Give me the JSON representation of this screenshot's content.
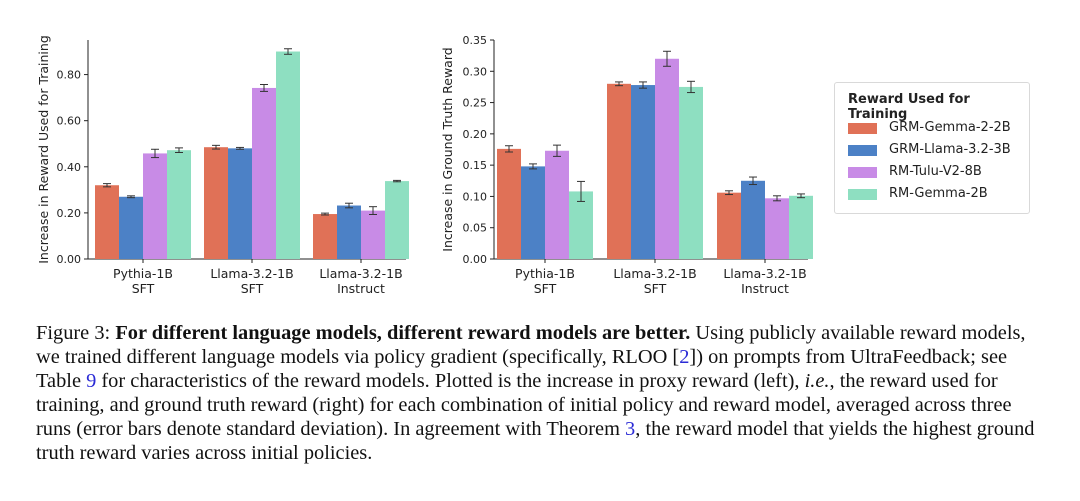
{
  "chart_data": [
    {
      "type": "bar",
      "ylabel": "Increase in Reward Used for Training",
      "ylim": [
        0,
        0.95
      ],
      "yticks": [
        "0.00",
        "0.20",
        "0.40",
        "0.60",
        "0.80"
      ],
      "yticks_values": [
        0,
        0.2,
        0.4,
        0.6,
        0.8
      ],
      "categories": [
        {
          "line1": "Pythia-1B",
          "line2": "SFT"
        },
        {
          "line1": "Llama-3.2-1B",
          "line2": "SFT"
        },
        {
          "line1": "Llama-3.2-1B",
          "line2": "Instruct"
        }
      ],
      "series": [
        {
          "name": "GRM-Gemma-2-2B",
          "values": [
            0.32,
            0.485,
            0.195
          ],
          "errors": [
            0.007,
            0.008,
            0.004
          ]
        },
        {
          "name": "GRM-Llama-3.2-3B",
          "values": [
            0.27,
            0.48,
            0.232
          ],
          "errors": [
            0.004,
            0.004,
            0.01
          ]
        },
        {
          "name": "RM-Tulu-V2-8B",
          "values": [
            0.458,
            0.742,
            0.21
          ],
          "errors": [
            0.018,
            0.015,
            0.017
          ]
        },
        {
          "name": "RM-Gemma-2B",
          "values": [
            0.472,
            0.9,
            0.338
          ],
          "errors": [
            0.01,
            0.012,
            0.003
          ]
        }
      ]
    },
    {
      "type": "bar",
      "ylabel": "Increase in Ground Truth Reward",
      "ylim": [
        0,
        0.35
      ],
      "yticks": [
        "0.00",
        "0.05",
        "0.10",
        "0.15",
        "0.20",
        "0.25",
        "0.30",
        "0.35"
      ],
      "yticks_values": [
        0,
        0.05,
        0.1,
        0.15,
        0.2,
        0.25,
        0.3,
        0.35
      ],
      "categories": [
        {
          "line1": "Pythia-1B",
          "line2": "SFT"
        },
        {
          "line1": "Llama-3.2-1B",
          "line2": "SFT"
        },
        {
          "line1": "Llama-3.2-1B",
          "line2": "Instruct"
        }
      ],
      "series": [
        {
          "name": "GRM-Gemma-2-2B",
          "values": [
            0.176,
            0.28,
            0.106
          ],
          "errors": [
            0.005,
            0.003,
            0.003
          ]
        },
        {
          "name": "GRM-Llama-3.2-3B",
          "values": [
            0.148,
            0.278,
            0.125
          ],
          "errors": [
            0.004,
            0.005,
            0.006
          ]
        },
        {
          "name": "RM-Tulu-V2-8B",
          "values": [
            0.173,
            0.32,
            0.097
          ],
          "errors": [
            0.009,
            0.012,
            0.004
          ]
        },
        {
          "name": "RM-Gemma-2B",
          "values": [
            0.108,
            0.275,
            0.101
          ],
          "errors": [
            0.016,
            0.009,
            0.003
          ]
        }
      ]
    }
  ],
  "colors": [
    "#e07157",
    "#4c81c6",
    "#c88be6",
    "#8edfc1"
  ],
  "legend": {
    "title": "Reward Used for Training",
    "items": [
      "GRM-Gemma-2-2B",
      "GRM-Llama-3.2-3B",
      "RM-Tulu-V2-8B",
      "RM-Gemma-2B"
    ]
  },
  "caption": {
    "label": "Figure 3:",
    "bold": "For different language models, different reward models are better.",
    "t1": " Using publicly available reward models, we trained different language models via policy gradient (specifically, RLOO [",
    "ref1": "2",
    "t2": "]) on prompts from UltraFeedback; see Table ",
    "ref2": "9",
    "t3": " for characteristics of the reward models. Plotted is the increase in proxy reward (left), ",
    "ie": "i.e.",
    "t4": ", the reward used for training, and ground truth reward (right) for each combination of initial policy and reward model, averaged across three runs (error bars denote standard deviation). In agreement with Theorem ",
    "ref3": "3",
    "t5": ", the reward model that yields the highest ground truth reward varies across initial policies."
  }
}
